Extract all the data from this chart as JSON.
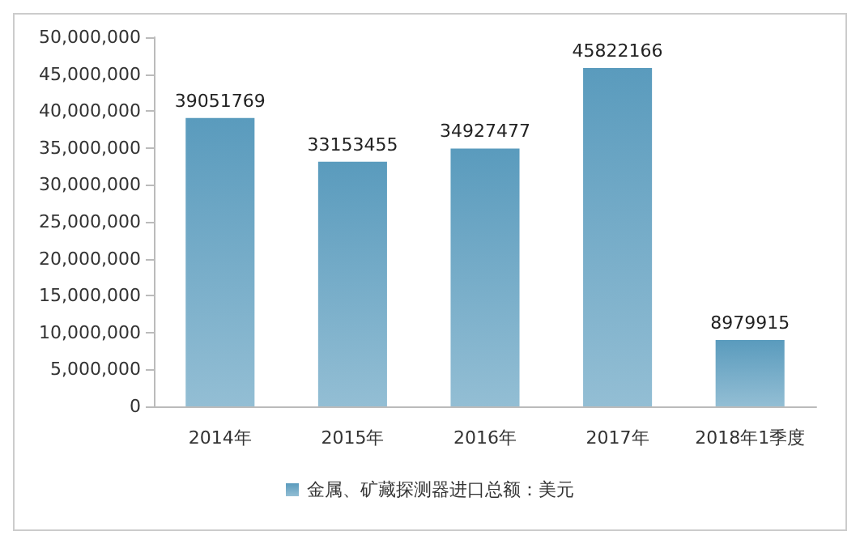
{
  "chart_data": {
    "type": "bar",
    "categories": [
      "2014年",
      "2015年",
      "2016年",
      "2017年",
      "2018年1季度"
    ],
    "series": [
      {
        "name": "金属、矿藏探测器进口总额：美元",
        "color": "#5a9bbd",
        "values": [
          39051769,
          33153455,
          34927477,
          45822166,
          8979915
        ]
      }
    ],
    "ylim": [
      0,
      50000000
    ],
    "yticks": [
      {
        "value": 0,
        "label": "0"
      },
      {
        "value": 5000000,
        "label": "5,000,000"
      },
      {
        "value": 10000000,
        "label": "10,000,000"
      },
      {
        "value": 15000000,
        "label": "15,000,000"
      },
      {
        "value": 20000000,
        "label": "20,000,000"
      },
      {
        "value": 25000000,
        "label": "25,000,000"
      },
      {
        "value": 30000000,
        "label": "30,000,000"
      },
      {
        "value": 35000000,
        "label": "35,000,000"
      },
      {
        "value": 40000000,
        "label": "40,000,000"
      },
      {
        "value": 45000000,
        "label": "45,000,000"
      },
      {
        "value": 50000000,
        "label": "50,000,000"
      }
    ],
    "data_labels": true,
    "legend": "bottom",
    "grid": false
  }
}
